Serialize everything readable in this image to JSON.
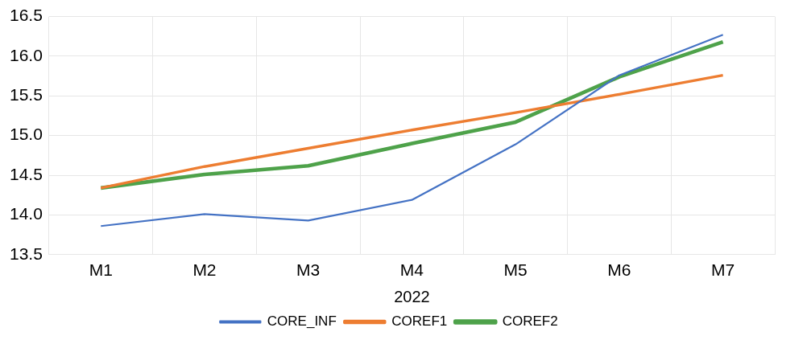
{
  "chart_data": {
    "type": "line",
    "xlabel": "2022",
    "categories": [
      "M1",
      "M2",
      "M3",
      "M4",
      "M5",
      "M6",
      "M7"
    ],
    "series": [
      {
        "name": "CORE_INF",
        "color": "#4472c4",
        "values": [
          13.86,
          14.01,
          13.93,
          14.19,
          14.89,
          15.76,
          16.27
        ]
      },
      {
        "name": "COREF1",
        "color": "#ed7d31",
        "values": [
          14.34,
          14.61,
          14.84,
          15.07,
          15.29,
          15.52,
          15.76
        ]
      },
      {
        "name": "COREF2",
        "color": "#4ea24a",
        "values": [
          14.34,
          14.51,
          14.62,
          14.9,
          15.17,
          15.74,
          16.18
        ]
      }
    ],
    "ylim": [
      13.5,
      16.5
    ],
    "yticks": [
      {
        "value": 13.5,
        "label": "13.5"
      },
      {
        "value": 14,
        "label": "14.0"
      },
      {
        "value": 14.5,
        "label": "14.5"
      },
      {
        "value": 15,
        "label": "15.0"
      },
      {
        "value": 15.5,
        "label": "15.5"
      },
      {
        "value": 16,
        "label": "16.0"
      },
      {
        "value": 16.5,
        "label": "16.5"
      }
    ],
    "grid": true,
    "legend": "bottom",
    "marker": "none",
    "line_style": "solid"
  }
}
